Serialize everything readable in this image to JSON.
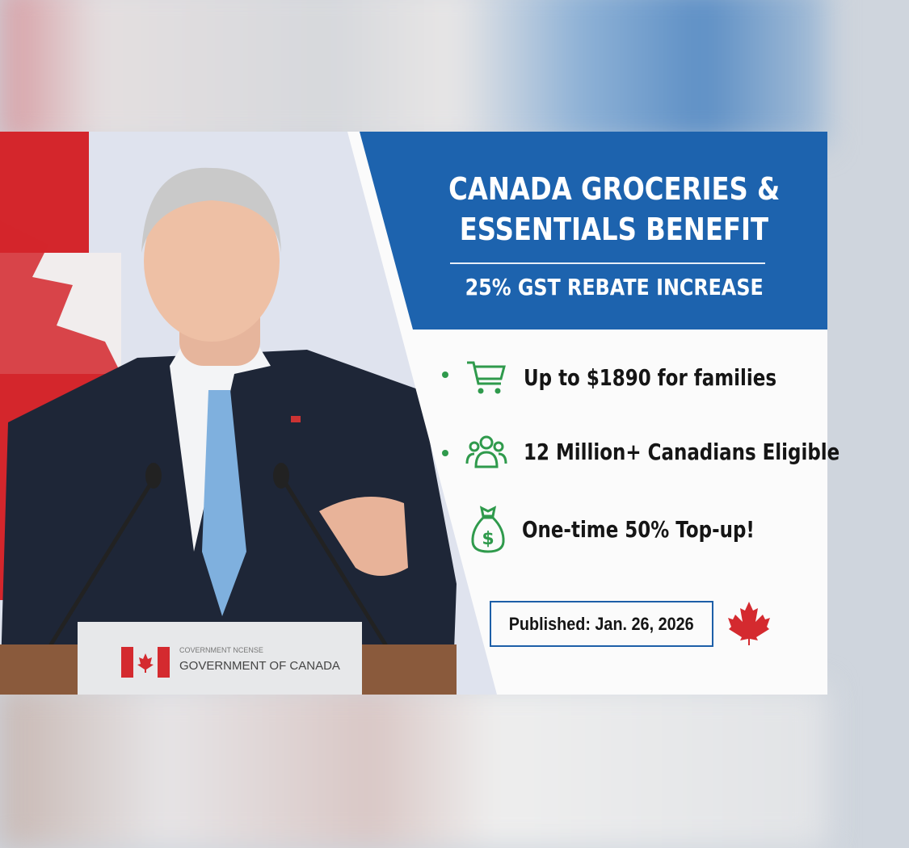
{
  "header": {
    "title_line1": "CANADA GROCERIES &",
    "title_line2": "ESSENTIALS BENEFIT",
    "subtitle": "25% GST REBATE INCREASE"
  },
  "benefits": [
    {
      "icon": "shopping-cart-icon",
      "text": "Up to $1890 for families",
      "bullet": true
    },
    {
      "icon": "people-group-icon",
      "text": "12 Million+ Canadians Eligible",
      "bullet": true
    },
    {
      "icon": "money-bag-icon",
      "text": "One-time 50% Top-up!",
      "bullet": false
    }
  ],
  "published": "Published: Jan. 26, 2026",
  "podium_sign": {
    "small_text": "COVERNMENT NCENSE",
    "main_text": "GOVERNMENT OF CANADA"
  },
  "colors": {
    "blue": "#1d63ae",
    "green": "#2f9a4c",
    "red": "#d42a2f"
  }
}
